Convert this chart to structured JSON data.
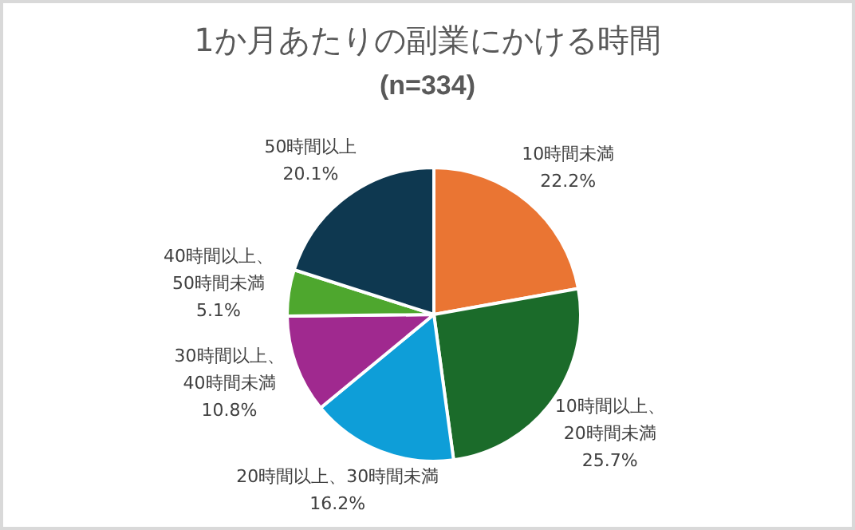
{
  "chart_data": {
    "type": "pie",
    "title": "1か月あたりの副業にかける時間",
    "subtitle": "(n=334)",
    "categories": [
      "10時間未満",
      "10時間以上、20時間未満",
      "20時間以上、30時間未満",
      "30時間以上、40時間未満",
      "40時間以上、50時間未満",
      "50時間以上"
    ],
    "values": [
      22.2,
      25.7,
      16.2,
      10.8,
      5.1,
      20.1
    ],
    "value_labels": [
      "22.2%",
      "25.7%",
      "16.2%",
      "10.8%",
      "5.1%",
      "20.1%"
    ],
    "colors": [
      "#ea7533",
      "#1b6b2a",
      "#0e9ed8",
      "#a0298f",
      "#4ea72e",
      "#0e3850"
    ],
    "legend": false
  }
}
